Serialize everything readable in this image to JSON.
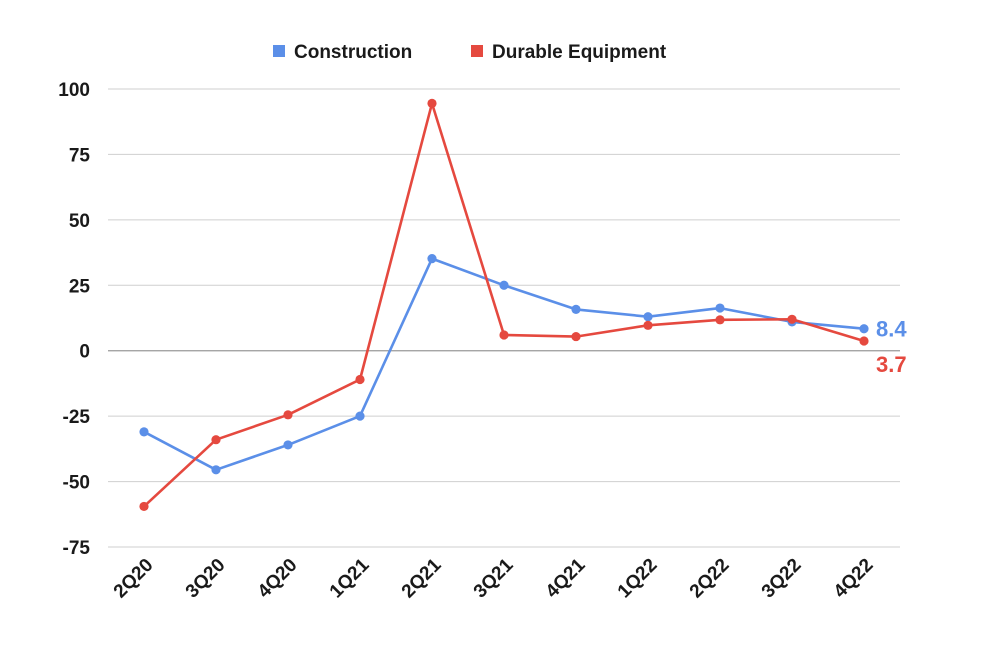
{
  "chart_data": {
    "type": "line",
    "categories": [
      "2Q20",
      "3Q20",
      "4Q20",
      "1Q21",
      "2Q21",
      "3Q21",
      "4Q21",
      "1Q22",
      "2Q22",
      "3Q22",
      "4Q22"
    ],
    "series": [
      {
        "name": "Construction",
        "color": "#5b8fe8",
        "values": [
          -31,
          -45.5,
          -36,
          -25,
          35.2,
          25,
          15.8,
          13,
          16.3,
          11,
          8.4
        ],
        "end_label": "8.4"
      },
      {
        "name": "Durable Equipment",
        "color": "#e5493f",
        "values": [
          -59.5,
          -34,
          -24.5,
          -11,
          94.5,
          6,
          5.4,
          9.7,
          11.8,
          12,
          3.7
        ],
        "end_label": "3.7"
      }
    ],
    "yticks": [
      100,
      75,
      50,
      25,
      0,
      -25,
      -50,
      -75
    ],
    "ylim": [
      -75,
      100
    ],
    "grid": true,
    "legend": "top-center",
    "title": "",
    "xlabel": "",
    "ylabel": ""
  }
}
